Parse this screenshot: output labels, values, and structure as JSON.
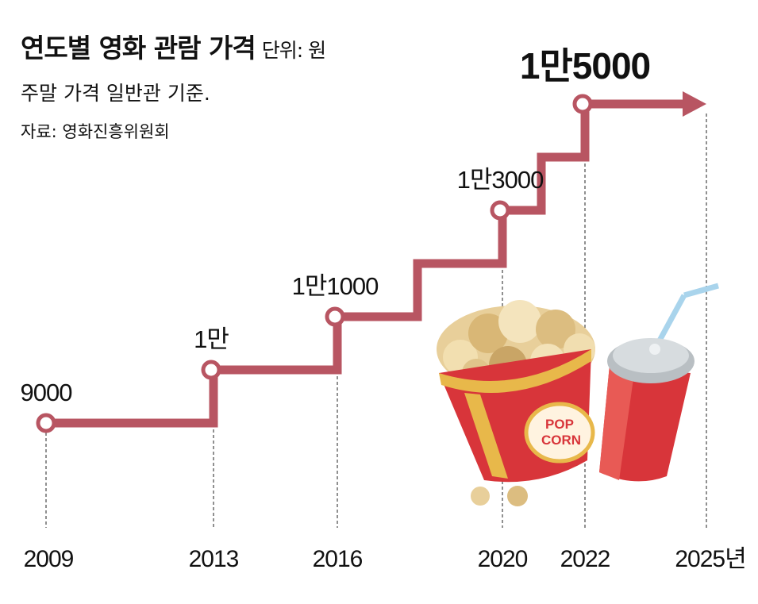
{
  "chart_data": {
    "type": "line",
    "title": "연도별 영화 관람 가격",
    "unit": "단위: 원",
    "note": "주말 가격 일반관 기준.",
    "source": "자료: 영화진흥위원회",
    "x": [
      2009,
      2013,
      2016,
      2020,
      2022
    ],
    "values": [
      9000,
      10000,
      11000,
      13000,
      15000
    ],
    "data_labels": [
      "9000",
      "1만",
      "1만1000",
      "1만3000",
      "1만5000"
    ],
    "x_ticks": [
      "2009",
      "2013",
      "2016",
      "2020",
      "2022",
      "2025년"
    ],
    "x_tick_values": [
      2009,
      2013,
      2016,
      2020,
      2022,
      2025
    ],
    "line_style": "step with arrow",
    "grid": false,
    "colors": {
      "line": "#b85562",
      "marker_fill": "#ffffff"
    }
  }
}
